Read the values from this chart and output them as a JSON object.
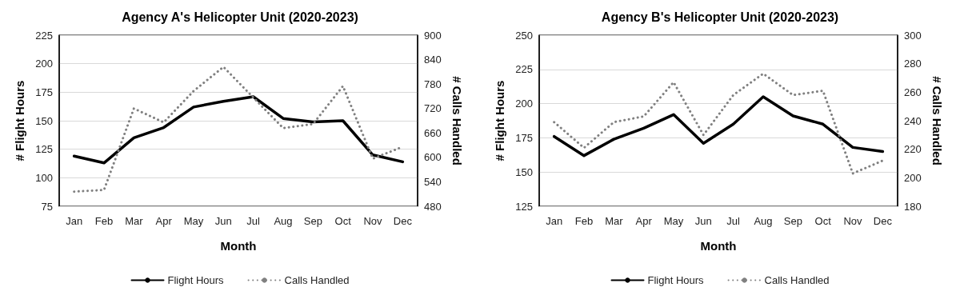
{
  "chart_data": [
    {
      "type": "line",
      "title": "Agency A's Helicopter Unit (2020-2023)",
      "xlabel": "Month",
      "ylabel": "# Flight Hours",
      "y2label": "# Calls Handled",
      "categories": [
        "Jan",
        "Feb",
        "Mar",
        "Apr",
        "May",
        "Jun",
        "Jul",
        "Aug",
        "Sep",
        "Oct",
        "Nov",
        "Dec"
      ],
      "series": [
        {
          "name": "Flight Hours",
          "color": "#000000",
          "line_style": "solid",
          "values": [
            119,
            113,
            135,
            144,
            162,
            167,
            171,
            152,
            149,
            150,
            120,
            114
          ]
        },
        {
          "name": "Calls Handled",
          "color": "#808080",
          "line_style": "dotted",
          "axis": "y2",
          "values": [
            516,
            520,
            720,
            686,
            763,
            822,
            747,
            672,
            682,
            775,
            597,
            626
          ]
        }
      ],
      "ylim": [
        75,
        225
      ],
      "yticks": [
        75,
        100,
        125,
        150,
        175,
        200,
        225
      ],
      "y2lim": [
        480,
        900
      ],
      "y2ticks": [
        480,
        540,
        600,
        660,
        720,
        780,
        840,
        900
      ],
      "grid": "y",
      "legend": "bottom",
      "marker": "none"
    },
    {
      "type": "line",
      "title": "Agency B's Helicopter Unit (2020-2023)",
      "xlabel": "Month",
      "ylabel": "# Flight Hours",
      "y2label": "# Calls Handled",
      "categories": [
        "Jan",
        "Feb",
        "Mar",
        "Apr",
        "May",
        "Jun",
        "Jul",
        "Aug",
        "Sep",
        "Oct",
        "Nov",
        "Dec"
      ],
      "series": [
        {
          "name": "Flight Hours",
          "color": "#000000",
          "line_style": "solid",
          "values": [
            176,
            162,
            174,
            182,
            192,
            171,
            185,
            205,
            191,
            185,
            168,
            165
          ]
        },
        {
          "name": "Calls Handled",
          "color": "#808080",
          "line_style": "dotted",
          "axis": "y2",
          "values": [
            239,
            221,
            239,
            243,
            267,
            230,
            258,
            273,
            258,
            261,
            203,
            212
          ]
        }
      ],
      "ylim": [
        125,
        250
      ],
      "yticks": [
        125,
        150,
        175,
        200,
        225,
        250
      ],
      "y2lim": [
        180,
        300
      ],
      "y2ticks": [
        180,
        200,
        220,
        240,
        260,
        280,
        300
      ],
      "grid": "y",
      "legend": "bottom",
      "marker": "none"
    }
  ]
}
